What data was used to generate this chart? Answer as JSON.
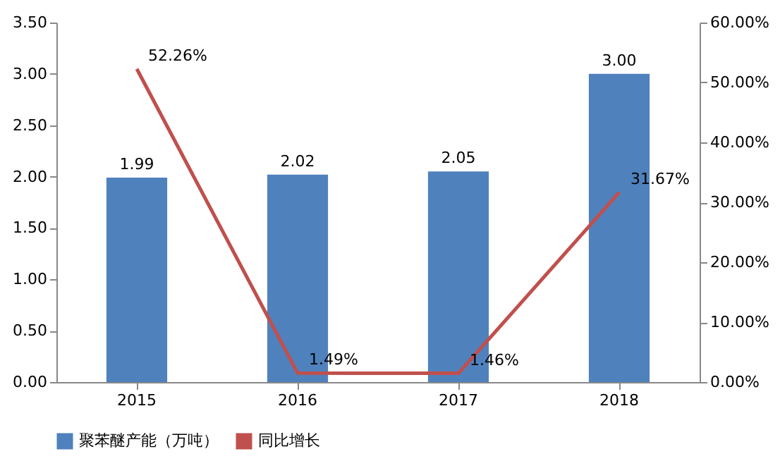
{
  "chart_data": {
    "type": "bar",
    "categories": [
      "2015",
      "2016",
      "2017",
      "2018"
    ],
    "series": [
      {
        "name": "聚苯醚产能（万吨）",
        "color": "#4f81bd",
        "values": [
          1.99,
          2.02,
          2.05,
          3.0
        ],
        "value_labels": [
          "1.99",
          "2.02",
          "2.05",
          "3.00"
        ]
      },
      {
        "name": "同比增长",
        "type": "line",
        "axis": "y2",
        "color": "#c0504d",
        "values": [
          52.26,
          1.49,
          1.46,
          31.67
        ],
        "value_labels": [
          "52.26%",
          "1.49%",
          "1.46%",
          "31.67%"
        ]
      }
    ],
    "ylim": [
      0,
      3.5
    ],
    "yticks": [
      {
        "value": 0,
        "label": "0.00"
      },
      {
        "value": 0.5,
        "label": "0.50"
      },
      {
        "value": 1,
        "label": "1.00"
      },
      {
        "value": 1.5,
        "label": "1.50"
      },
      {
        "value": 2,
        "label": "2.00"
      },
      {
        "value": 2.5,
        "label": "2.50"
      },
      {
        "value": 3,
        "label": "3.00"
      },
      {
        "value": 3.5,
        "label": "3.50"
      }
    ],
    "y2lim": [
      0,
      60
    ],
    "y2ticks": [
      {
        "value": 0,
        "label": "0.00%"
      },
      {
        "value": 10,
        "label": "10.00%"
      },
      {
        "value": 20,
        "label": "20.00%"
      },
      {
        "value": 30,
        "label": "30.00%"
      },
      {
        "value": 40,
        "label": "40.00%"
      },
      {
        "value": 50,
        "label": "50.00%"
      },
      {
        "value": 60,
        "label": "60.00%"
      }
    ],
    "legend": "bottom",
    "marker": "none",
    "line_style": "solid"
  }
}
